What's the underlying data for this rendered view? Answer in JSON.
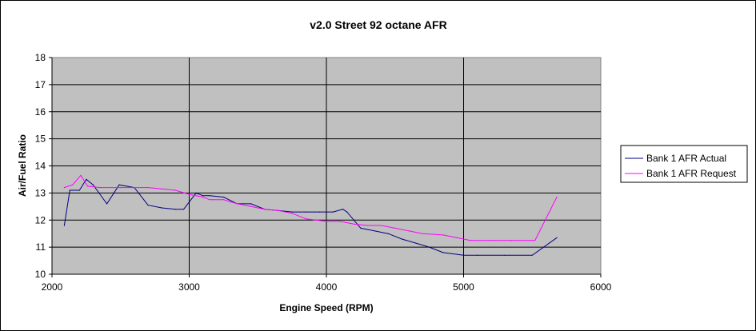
{
  "chart_data": {
    "type": "line",
    "title": "v2.0 Street 92 octane AFR",
    "xlabel": "Engine Speed (RPM)",
    "ylabel": "Air/Fuel Ratio",
    "xlim": [
      2000,
      6000
    ],
    "ylim": [
      10,
      18
    ],
    "x_ticks": [
      "2000",
      "3000",
      "4000",
      "5000",
      "6000"
    ],
    "y_ticks": [
      "10",
      "11",
      "12",
      "13",
      "14",
      "15",
      "16",
      "17",
      "18"
    ],
    "grid": true,
    "legend_position": "right",
    "background": "#c0c0c0",
    "series": [
      {
        "name": "Bank 1 AFR Actual",
        "color": "#000080",
        "points": [
          [
            2090,
            11.8
          ],
          [
            2130,
            13.1
          ],
          [
            2200,
            13.1
          ],
          [
            2250,
            13.5
          ],
          [
            2300,
            13.3
          ],
          [
            2400,
            12.6
          ],
          [
            2490,
            13.3
          ],
          [
            2600,
            13.2
          ],
          [
            2700,
            12.55
          ],
          [
            2800,
            12.45
          ],
          [
            2900,
            12.4
          ],
          [
            2960,
            12.4
          ],
          [
            3050,
            13.0
          ],
          [
            3100,
            12.9
          ],
          [
            3150,
            12.9
          ],
          [
            3250,
            12.85
          ],
          [
            3350,
            12.6
          ],
          [
            3450,
            12.6
          ],
          [
            3550,
            12.4
          ],
          [
            3650,
            12.35
          ],
          [
            3750,
            12.3
          ],
          [
            3850,
            12.3
          ],
          [
            3950,
            12.3
          ],
          [
            4050,
            12.3
          ],
          [
            4120,
            12.4
          ],
          [
            4150,
            12.3
          ],
          [
            4250,
            11.7
          ],
          [
            4350,
            11.6
          ],
          [
            4450,
            11.5
          ],
          [
            4550,
            11.3
          ],
          [
            4650,
            11.15
          ],
          [
            4750,
            11.0
          ],
          [
            4850,
            10.8
          ],
          [
            5000,
            10.7
          ],
          [
            5100,
            10.7
          ],
          [
            5300,
            10.7
          ],
          [
            5500,
            10.7
          ],
          [
            5680,
            11.35
          ]
        ]
      },
      {
        "name": "Bank 1 AFR Request",
        "color": "#ff00ff",
        "points": [
          [
            2090,
            13.2
          ],
          [
            2150,
            13.3
          ],
          [
            2210,
            13.65
          ],
          [
            2260,
            13.25
          ],
          [
            2350,
            13.2
          ],
          [
            2500,
            13.2
          ],
          [
            2600,
            13.2
          ],
          [
            2700,
            13.2
          ],
          [
            2800,
            13.15
          ],
          [
            2900,
            13.1
          ],
          [
            3000,
            12.95
          ],
          [
            3100,
            12.85
          ],
          [
            3150,
            12.75
          ],
          [
            3250,
            12.75
          ],
          [
            3350,
            12.6
          ],
          [
            3450,
            12.5
          ],
          [
            3550,
            12.4
          ],
          [
            3650,
            12.35
          ],
          [
            3750,
            12.25
          ],
          [
            3850,
            12.05
          ],
          [
            4000,
            11.95
          ],
          [
            4100,
            11.95
          ],
          [
            4200,
            11.85
          ],
          [
            4300,
            11.8
          ],
          [
            4400,
            11.8
          ],
          [
            4500,
            11.7
          ],
          [
            4600,
            11.6
          ],
          [
            4700,
            11.5
          ],
          [
            4850,
            11.45
          ],
          [
            4950,
            11.35
          ],
          [
            5050,
            11.25
          ],
          [
            5200,
            11.25
          ],
          [
            5350,
            11.25
          ],
          [
            5520,
            11.25
          ],
          [
            5680,
            12.85
          ]
        ]
      }
    ]
  }
}
